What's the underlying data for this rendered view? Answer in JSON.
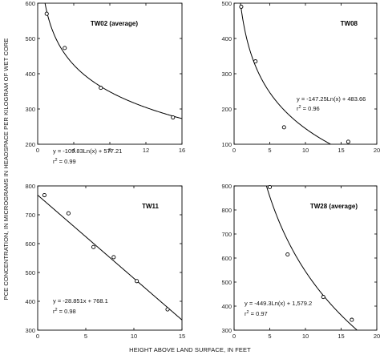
{
  "figure": {
    "ylabel": "PCE CONCENTRATION, IN MICROGRAMS IN HEADSPACE PER KILOGRAM OF WET CORE",
    "xlabel": "HEIGHT ABOVE LAND SURFACE, IN FEET"
  },
  "chart_data": [
    {
      "type": "scatter",
      "title": "TW02 (average)",
      "xlim": [
        0,
        16
      ],
      "ylim": [
        200,
        600
      ],
      "xticks": [
        "0",
        "4",
        "8",
        "12",
        "16"
      ],
      "yticks": [
        "200",
        "300",
        "400",
        "500",
        "600"
      ],
      "x": [
        1,
        3,
        7,
        15
      ],
      "y": [
        570,
        473,
        360,
        276
      ],
      "fit": {
        "kind": "log",
        "a": -109.83,
        "b": 577.21
      },
      "equation": "y = -109.83Ln(x) + 577.21",
      "r2_label": "r",
      "r2_sup": "2",
      "r2_value": " = 0.99"
    },
    {
      "type": "scatter",
      "title": "TW08",
      "xlim": [
        0,
        20
      ],
      "ylim": [
        100,
        500
      ],
      "xticks": [
        "0",
        "5",
        "10",
        "15",
        "20"
      ],
      "yticks": [
        "100",
        "200",
        "300",
        "400",
        "500"
      ],
      "x": [
        1,
        3,
        7,
        16
      ],
      "y": [
        490,
        335,
        148,
        107
      ],
      "fit": {
        "kind": "log",
        "a": -147.25,
        "b": 483.66
      },
      "equation": "y = -147.25Ln(x) + 483.66",
      "r2_label": "r",
      "r2_sup": "2",
      "r2_value": " = 0.96"
    },
    {
      "type": "scatter",
      "title": "TW11",
      "xlim": [
        0,
        15
      ],
      "ylim": [
        300,
        800
      ],
      "xticks": [
        "0",
        "5",
        "10",
        "15"
      ],
      "yticks": [
        "300",
        "400",
        "500",
        "600",
        "700",
        "800"
      ],
      "x": [
        0.7,
        3.2,
        5.8,
        7.9,
        10.3,
        13.5
      ],
      "y": [
        768,
        705,
        588,
        553,
        470,
        372
      ],
      "fit": {
        "kind": "linear",
        "a": -28.851,
        "b": 768.1
      },
      "equation": "y = -28.851x + 768.1",
      "r2_label": "r",
      "r2_sup": "2",
      "r2_value": " = 0.98"
    },
    {
      "type": "scatter",
      "title": "TW28 (average)",
      "xlim": [
        0,
        20
      ],
      "ylim": [
        300,
        900
      ],
      "xticks": [
        "0",
        "5",
        "10",
        "15",
        "20"
      ],
      "yticks": [
        "300",
        "400",
        "500",
        "600",
        "700",
        "800",
        "900"
      ],
      "x": [
        5,
        7.5,
        12.5,
        16.5
      ],
      "y": [
        895,
        615,
        438,
        343
      ],
      "fit": {
        "kind": "log",
        "a": -449.3,
        "b": 1579.2
      },
      "equation": "y = -449.3Ln(x) + 1,579.2",
      "r2_label": "r",
      "r2_sup": "2",
      "r2_value": " = 0.97"
    }
  ]
}
